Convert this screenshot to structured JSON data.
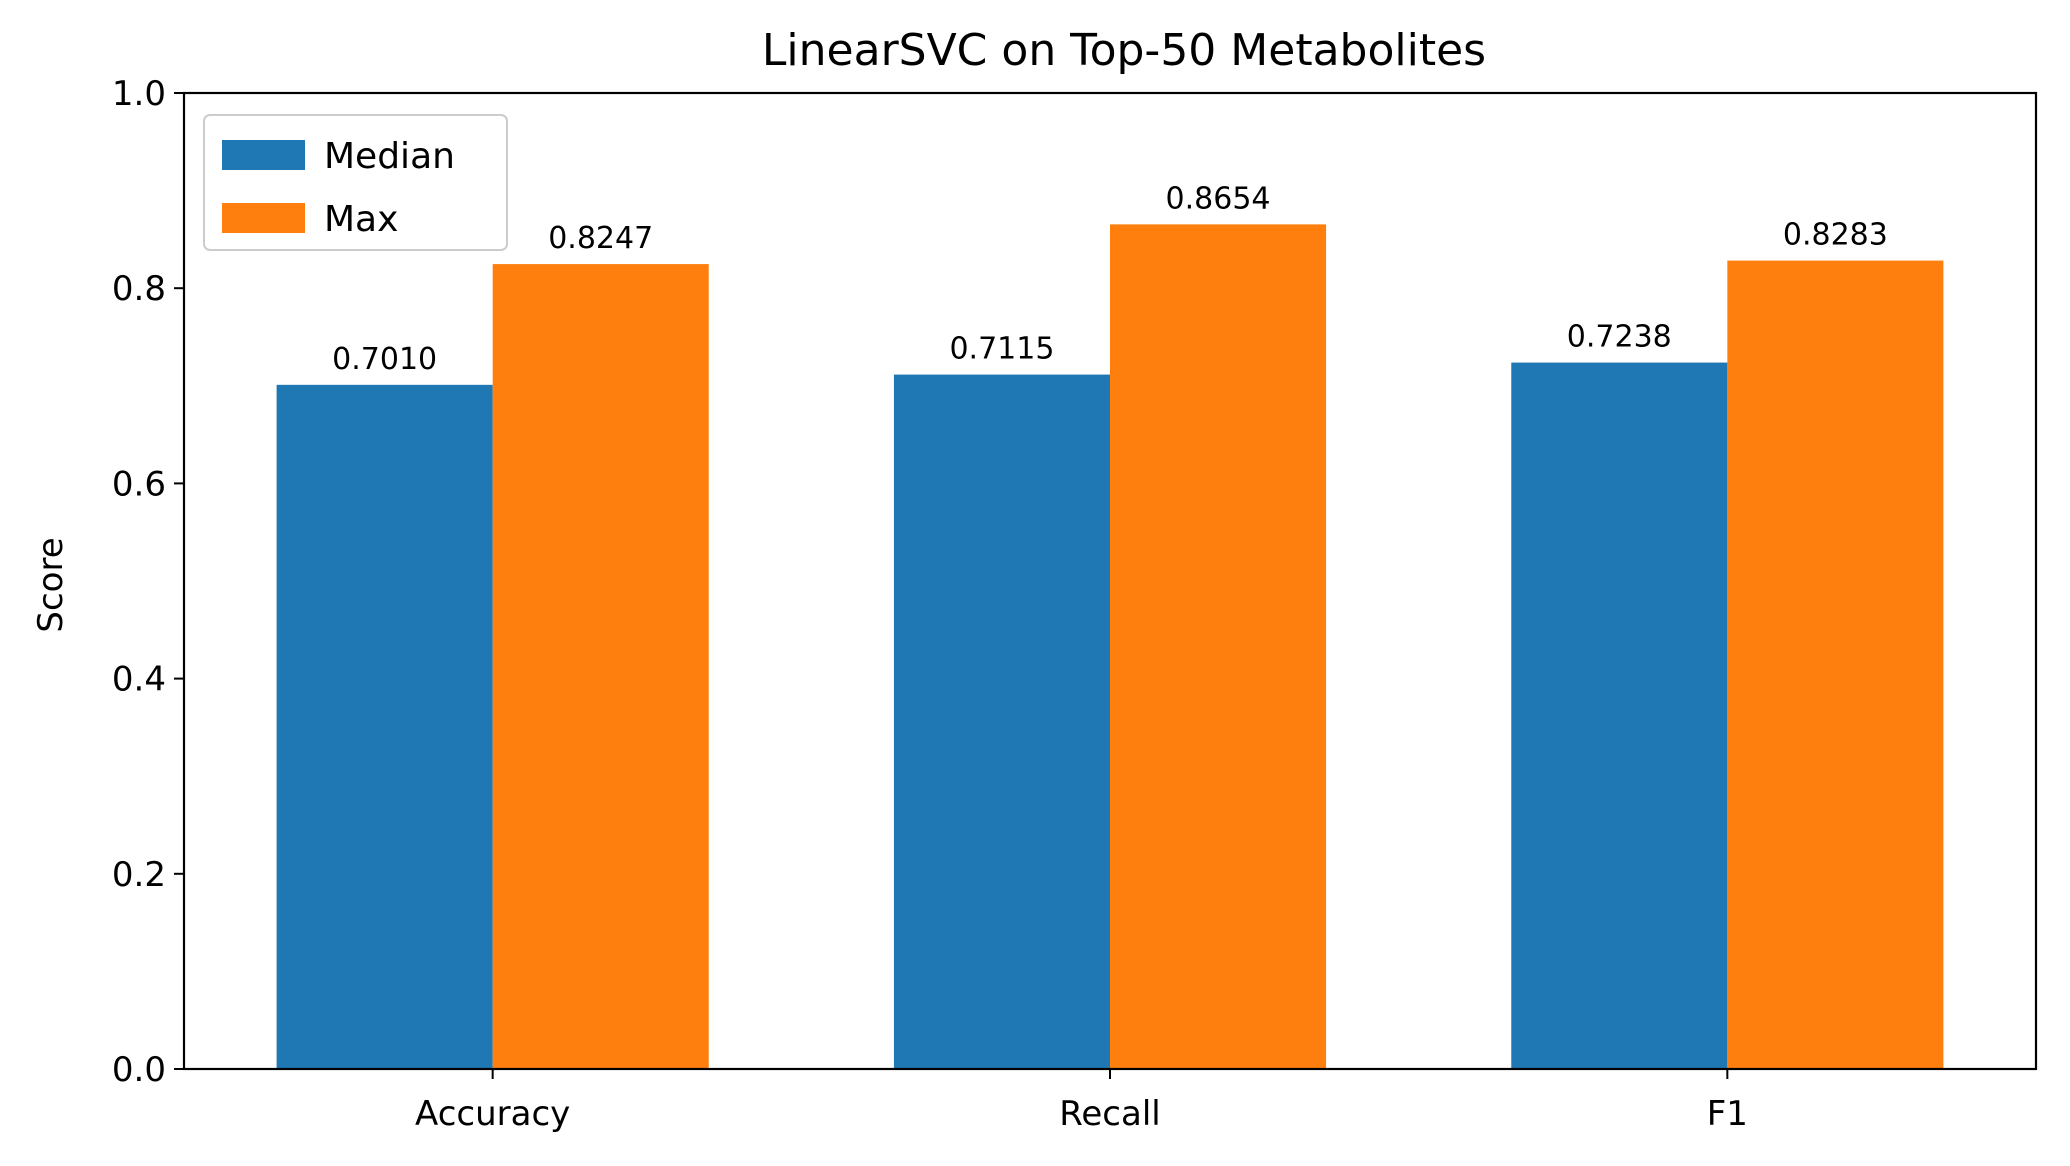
{
  "chart_data": {
    "type": "bar",
    "title": "LinearSVC on Top-50 Metabolites",
    "xlabel": "",
    "ylabel": "Score",
    "ylim": [
      0,
      1.0
    ],
    "yticks": [
      "0.0",
      "0.2",
      "0.4",
      "0.6",
      "0.8",
      "1.0"
    ],
    "categories": [
      "Accuracy",
      "Recall",
      "F1"
    ],
    "series": [
      {
        "name": "Median",
        "color": "#1f77b4",
        "values": [
          0.701,
          0.7115,
          0.7238
        ],
        "labels": [
          "0.7010",
          "0.7115",
          "0.7238"
        ]
      },
      {
        "name": "Max",
        "color": "#ff7f0e",
        "values": [
          0.8247,
          0.8654,
          0.8283
        ],
        "labels": [
          "0.8247",
          "0.8654",
          "0.8283"
        ]
      }
    ],
    "legend_position": "top-left",
    "grid": false
  }
}
